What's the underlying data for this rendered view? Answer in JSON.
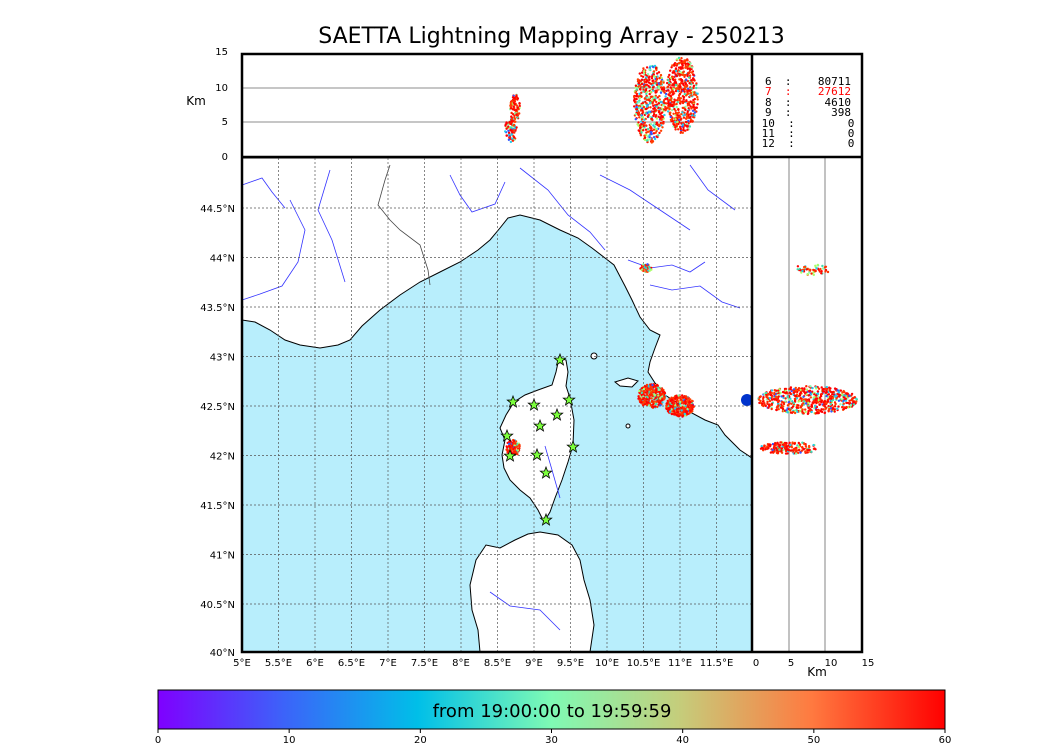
{
  "title": "SAETTA Lightning Mapping Array - 250213",
  "colorbar": {
    "label": "from 19:00:00 to 19:59:59",
    "ticks": [
      "0",
      "10",
      "20",
      "30",
      "40",
      "50",
      "60"
    ]
  },
  "altitude_axis": {
    "unit": "Km",
    "ticks": [
      "15",
      "10",
      "5",
      "0"
    ]
  },
  "side_axis": {
    "unit": "Km",
    "ticks": [
      "0",
      "5",
      "10",
      "15"
    ]
  },
  "map": {
    "lon_ticks": [
      "5°E",
      "5.5°E",
      "6°E",
      "6.5°E",
      "7°E",
      "7.5°E",
      "8°E",
      "8.5°E",
      "9°E",
      "9.5°E",
      "10°E",
      "10.5°E",
      "11°E",
      "11.5°E"
    ],
    "lat_ticks": [
      "44.5°N",
      "44°N",
      "43.5°N",
      "43°N",
      "42.5°N",
      "42°N",
      "41.5°N",
      "41°N",
      "40.5°N",
      "40°N"
    ],
    "colors": {
      "sea": "#b8eefc",
      "land": "#ffffff",
      "rivers": "#3333ff",
      "stations": "#7cff3c"
    }
  },
  "stats": [
    {
      "text": "6  :    80711",
      "color": "#000000"
    },
    {
      "text": "7  :    27612",
      "color": "#ff0000"
    },
    {
      "text": "8  :     4610",
      "color": "#000000"
    },
    {
      "text": "9  :      398",
      "color": "#000000"
    },
    {
      "text": "10  :        0",
      "color": "#000000"
    },
    {
      "text": "11  :        0",
      "color": "#000000"
    },
    {
      "text": "12  :        0",
      "color": "#000000"
    }
  ]
}
